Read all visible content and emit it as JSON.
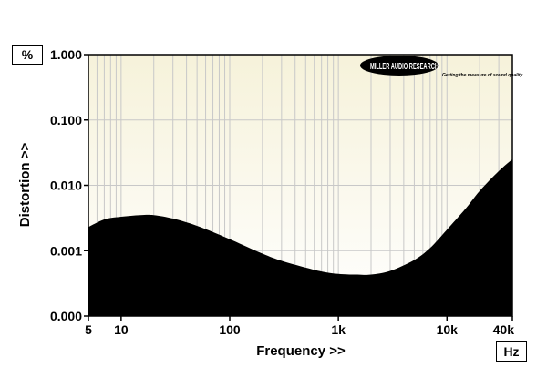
{
  "chart_data": {
    "type": "area",
    "xlabel": "Frequency >>",
    "ylabel": "Distortion >>",
    "x_unit": "Hz",
    "y_unit": "%",
    "x_scale": "log",
    "y_scale": "log",
    "xlim": [
      5,
      40000
    ],
    "ylim": [
      0.0001,
      1.0
    ],
    "x_ticks": [
      {
        "value": 5,
        "label": "5"
      },
      {
        "value": 10,
        "label": "10"
      },
      {
        "value": 100,
        "label": "100"
      },
      {
        "value": 1000,
        "label": "1k"
      },
      {
        "value": 10000,
        "label": "10k"
      },
      {
        "value": 40000,
        "label": "40k"
      }
    ],
    "y_ticks": [
      {
        "value": 0.0001,
        "label": "0.000"
      },
      {
        "value": 0.001,
        "label": "0.001"
      },
      {
        "value": 0.01,
        "label": "0.010"
      },
      {
        "value": 0.1,
        "label": "0.100"
      },
      {
        "value": 1.0,
        "label": "1.000"
      }
    ],
    "grid": true,
    "series": [
      {
        "color": "#000000",
        "x": [
          5,
          7,
          10,
          15,
          20,
          30,
          50,
          100,
          200,
          300,
          500,
          700,
          1000,
          1500,
          2000,
          3000,
          5000,
          7000,
          10000,
          15000,
          20000,
          30000,
          40000
        ],
        "y": [
          0.0023,
          0.003,
          0.0033,
          0.0035,
          0.0035,
          0.0031,
          0.0024,
          0.0015,
          0.0009,
          0.0007,
          0.00055,
          0.00048,
          0.00044,
          0.00043,
          0.00043,
          0.00049,
          0.00072,
          0.0011,
          0.0021,
          0.0045,
          0.0082,
          0.0165,
          0.025
        ]
      }
    ],
    "colors": {
      "background_top": "#f6f2da",
      "background_bottom": "#ffffff",
      "fill": "#000000",
      "grid": "#c8c8c8"
    },
    "logo": {
      "main": "MILLER AUDIO RESEARCH",
      "tagline": "Getting the measure of sound quality"
    }
  }
}
